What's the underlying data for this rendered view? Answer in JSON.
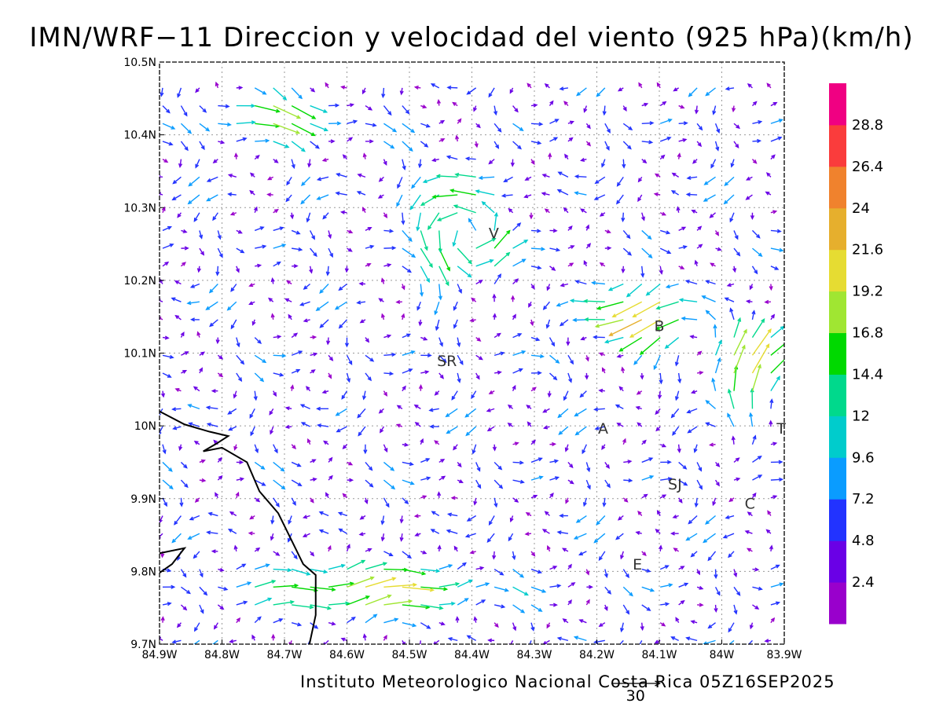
{
  "title": "IMN/WRF−11 Direccion y velocidad del viento (925 hPa)(km/h)",
  "footer": "Instituto Meteorologico Nacional Costa Rica 05Z16SEP2025",
  "reference_vector": {
    "value": 30,
    "label": "30"
  },
  "axes": {
    "x_ticks": [
      "84.9W",
      "84.8W",
      "84.7W",
      "84.6W",
      "84.5W",
      "84.4W",
      "84.3W",
      "84.2W",
      "84.1W",
      "84W",
      "83.9W"
    ],
    "y_ticks": [
      "9.7N",
      "9.8N",
      "9.9N",
      "10N",
      "10.1N",
      "10.2N",
      "10.3N",
      "10.4N",
      "10.5N"
    ],
    "x_range": [
      -84.9,
      -83.9
    ],
    "y_range": [
      9.7,
      10.5
    ],
    "grid": true
  },
  "places": [
    {
      "label": "V",
      "lon": -84.365,
      "lat": 10.265
    },
    {
      "label": "B",
      "lon": -84.1,
      "lat": 10.138
    },
    {
      "label": "SR",
      "lon": -84.44,
      "lat": 10.09
    },
    {
      "label": "A",
      "lon": -84.19,
      "lat": 9.997
    },
    {
      "label": "T",
      "lon": -83.905,
      "lat": 9.997
    },
    {
      "label": "SJ",
      "lon": -84.075,
      "lat": 9.92
    },
    {
      "label": "C",
      "lon": -83.955,
      "lat": 9.894
    },
    {
      "label": "E",
      "lon": -84.135,
      "lat": 9.81
    }
  ],
  "colorbar": {
    "labels": [
      "2.4",
      "4.8",
      "7.2",
      "9.6",
      "12",
      "14.4",
      "16.8",
      "19.2",
      "21.6",
      "24",
      "26.4",
      "28.8"
    ],
    "colors": [
      "#9900cc",
      "#6a00e6",
      "#2233ff",
      "#0a9cff",
      "#00cccc",
      "#00d98c",
      "#00d900",
      "#a0e632",
      "#e6dc32",
      "#e6af2d",
      "#f0822d",
      "#fa3c3c",
      "#f00082"
    ]
  },
  "coastline": [
    [
      -84.9,
      10.02
    ],
    [
      -84.86,
      10.002
    ],
    [
      -84.82,
      9.992
    ],
    [
      -84.79,
      9.986
    ],
    [
      -84.81,
      9.975
    ],
    [
      -84.83,
      9.965
    ],
    [
      -84.8,
      9.97
    ],
    [
      -84.76,
      9.95
    ],
    [
      -84.74,
      9.91
    ],
    [
      -84.71,
      9.88
    ],
    [
      -84.69,
      9.845
    ],
    [
      -84.67,
      9.81
    ],
    [
      -84.65,
      9.795
    ],
    [
      -84.65,
      9.74
    ],
    [
      -84.66,
      9.7
    ]
  ],
  "coastline_south": [
    [
      -84.9,
      9.825
    ],
    [
      -84.86,
      9.832
    ],
    [
      -84.88,
      9.81
    ],
    [
      -84.9,
      9.798
    ]
  ],
  "wind_field_note": "Wind vectors are drawn on a regular model grid; speeds in km/h coloured by the scale."
}
